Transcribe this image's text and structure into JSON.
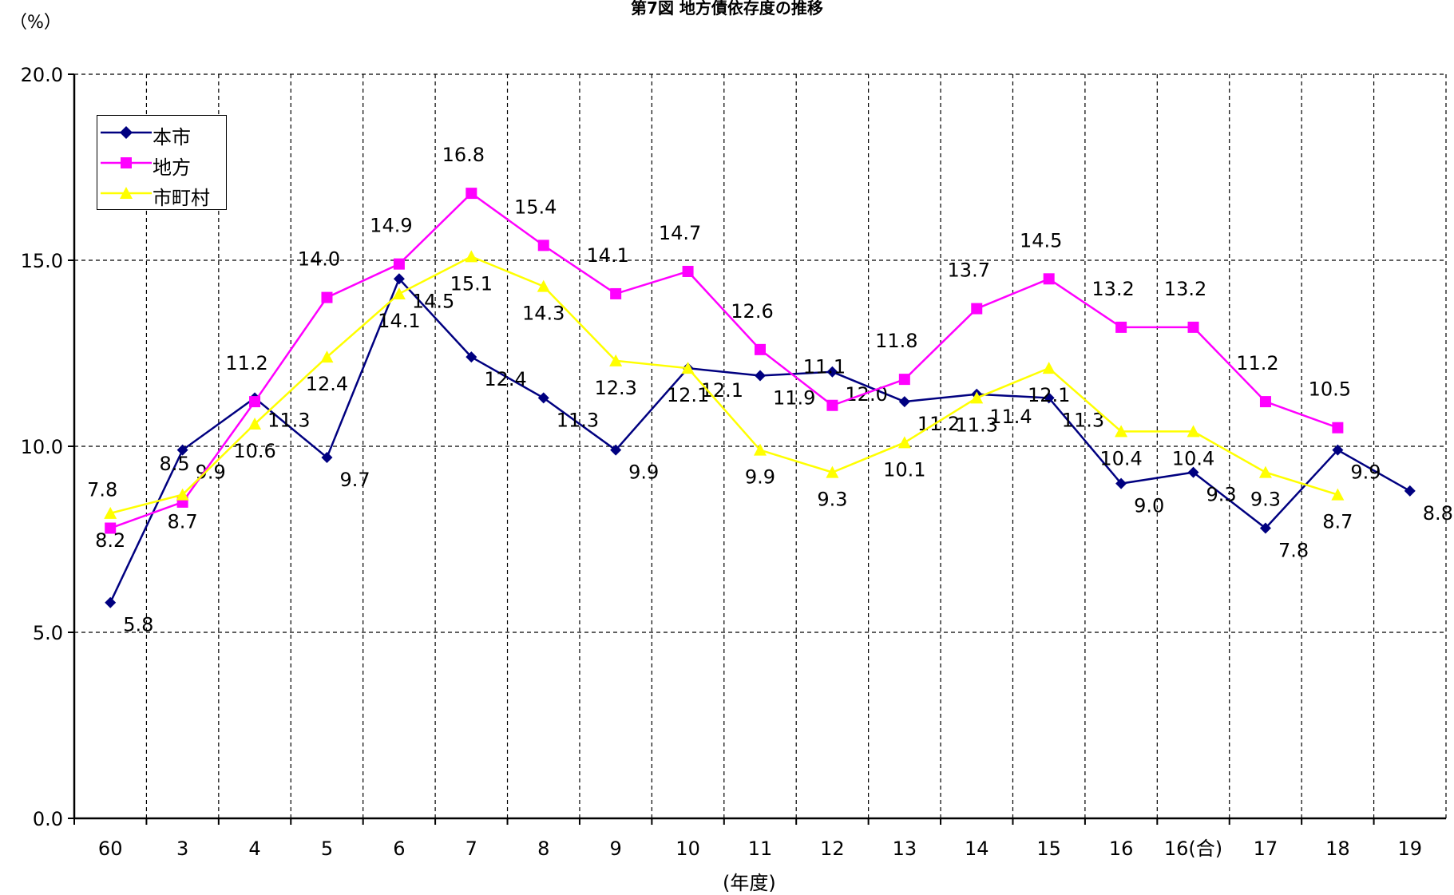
{
  "title": "第7図  地方債依存度の推移",
  "y_unit": "（%）",
  "x_unit": "(年度)",
  "chart_data": {
    "type": "line",
    "title": "第7図  地方債依存度の推移",
    "ylabel": "（%）",
    "xlabel": "(年度)",
    "ylim": [
      0,
      20
    ],
    "yticks": [
      0,
      5,
      10,
      15,
      20
    ],
    "ytick_labels": [
      "0.0",
      "5.0",
      "10.0",
      "15.0",
      "20.0"
    ],
    "grid": true,
    "legend_position": "top-left",
    "categories": [
      "60",
      "3",
      "4",
      "5",
      "6",
      "7",
      "8",
      "9",
      "10",
      "11",
      "12",
      "13",
      "14",
      "15",
      "16",
      "16(合)",
      "17",
      "18",
      "19"
    ],
    "series": [
      {
        "name": "本市",
        "color": "#000080",
        "marker": "diamond",
        "values": [
          5.8,
          9.9,
          11.3,
          9.7,
          14.5,
          12.4,
          11.3,
          9.9,
          12.1,
          11.9,
          12.0,
          11.2,
          11.4,
          11.3,
          9.0,
          9.3,
          7.8,
          9.9,
          8.8
        ],
        "labels": [
          "5.8",
          "9.9",
          "11.3",
          "9.7",
          "14.5",
          "12.4",
          "11.3",
          "9.9",
          "12.1",
          "11.9",
          "12.0",
          "11.2",
          "11.4",
          "11.3",
          "9.0",
          "9.3",
          "7.8",
          "9.9",
          "8.8"
        ]
      },
      {
        "name": "地方",
        "color": "#ff00ff",
        "marker": "square",
        "values": [
          7.8,
          8.5,
          11.2,
          14.0,
          14.9,
          16.8,
          15.4,
          14.1,
          14.7,
          12.6,
          11.1,
          11.8,
          13.7,
          14.5,
          13.2,
          13.2,
          11.2,
          10.5,
          null
        ],
        "labels": [
          "7.8",
          "8.5",
          "11.2",
          "14.0",
          "14.9",
          "16.8",
          "15.4",
          "14.1",
          "14.7",
          "12.6",
          "11.1",
          "11.8",
          "13.7",
          "14.5",
          "13.2",
          "13.2",
          "11.2",
          "10.5",
          null
        ]
      },
      {
        "name": "市町村",
        "color": "#ffff00",
        "marker": "triangle",
        "values": [
          8.2,
          8.7,
          10.6,
          12.4,
          14.1,
          15.1,
          14.3,
          12.3,
          12.1,
          9.9,
          9.3,
          10.1,
          11.3,
          12.1,
          10.4,
          10.4,
          9.3,
          8.7,
          null
        ],
        "labels": [
          "8.2",
          "8.7",
          "10.6",
          "12.4",
          "14.1",
          "15.1",
          "14.3",
          "12.3",
          "12.1",
          "9.9",
          "9.3",
          "10.1",
          "11.3",
          "12.1",
          "10.4",
          "10.4",
          "9.3",
          "8.7",
          null
        ]
      }
    ]
  }
}
